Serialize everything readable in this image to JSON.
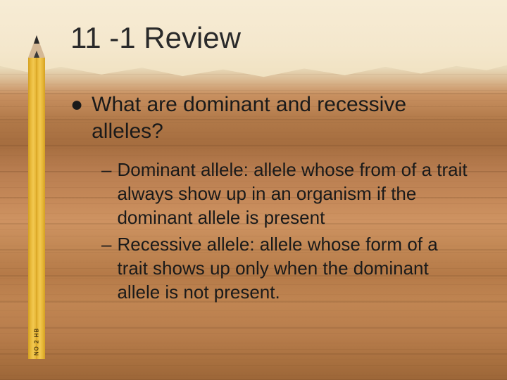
{
  "slide": {
    "title": "11 -1 Review",
    "background_colors": {
      "paper": "#f5e9d0",
      "wood_light": "#c89060",
      "wood_dark": "#9c6638"
    },
    "pencil": {
      "label": "NO 2  HB",
      "body_color": "#e8b838",
      "tip_color": "#d4b896",
      "lead_color": "#2a2a2a"
    },
    "bullet": {
      "marker": "●",
      "text": "What are dominant and recessive alleles?"
    },
    "sub_items": [
      {
        "marker": "–",
        "text": "Dominant allele: allele whose from of a trait always show up in an organism if the dominant allele is present"
      },
      {
        "marker": "–",
        "text": "Recessive allele: allele whose form of a trait shows up only when the dominant allele is not present."
      }
    ],
    "text_color": "#1a1a1a",
    "title_fontsize": 42,
    "body_fontsize": 30,
    "sub_fontsize": 26
  }
}
